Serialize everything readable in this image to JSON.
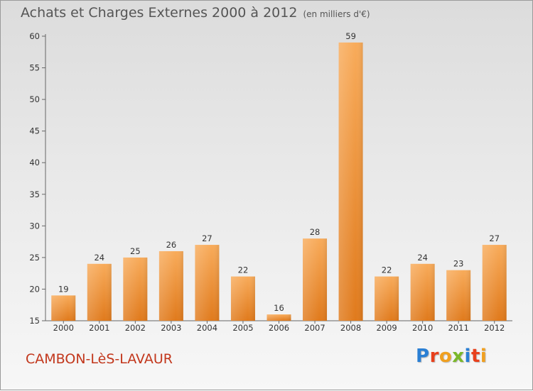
{
  "title": "Achats et Charges Externes 2000 à 2012",
  "unit_note": "(en milliers d'€)",
  "commune": "CAMBON-LèS-LAVAUR",
  "logo": {
    "letters": [
      "P",
      "r",
      "o",
      "x",
      "i",
      "t",
      "i"
    ],
    "colors": [
      "#2a7fd4",
      "#e8401c",
      "#f0a020",
      "#7ab82a",
      "#2a7fd4",
      "#e8401c",
      "#f0a020"
    ]
  },
  "colors": {
    "bar_top": "#f8ab5a",
    "bar_bottom": "#e07a1c",
    "commune_text": "#c2371c"
  },
  "chart_data": {
    "type": "bar",
    "categories": [
      "2000",
      "2001",
      "2002",
      "2003",
      "2004",
      "2005",
      "2006",
      "2007",
      "2008",
      "2009",
      "2010",
      "2011",
      "2012"
    ],
    "values": [
      19,
      24,
      25,
      26,
      27,
      22,
      16,
      28,
      59,
      22,
      24,
      23,
      27
    ],
    "ylim": [
      15,
      60
    ],
    "yticks": [
      15,
      20,
      25,
      30,
      35,
      40,
      45,
      50,
      55,
      60
    ],
    "grid": false,
    "xlabel": "",
    "ylabel": ""
  }
}
